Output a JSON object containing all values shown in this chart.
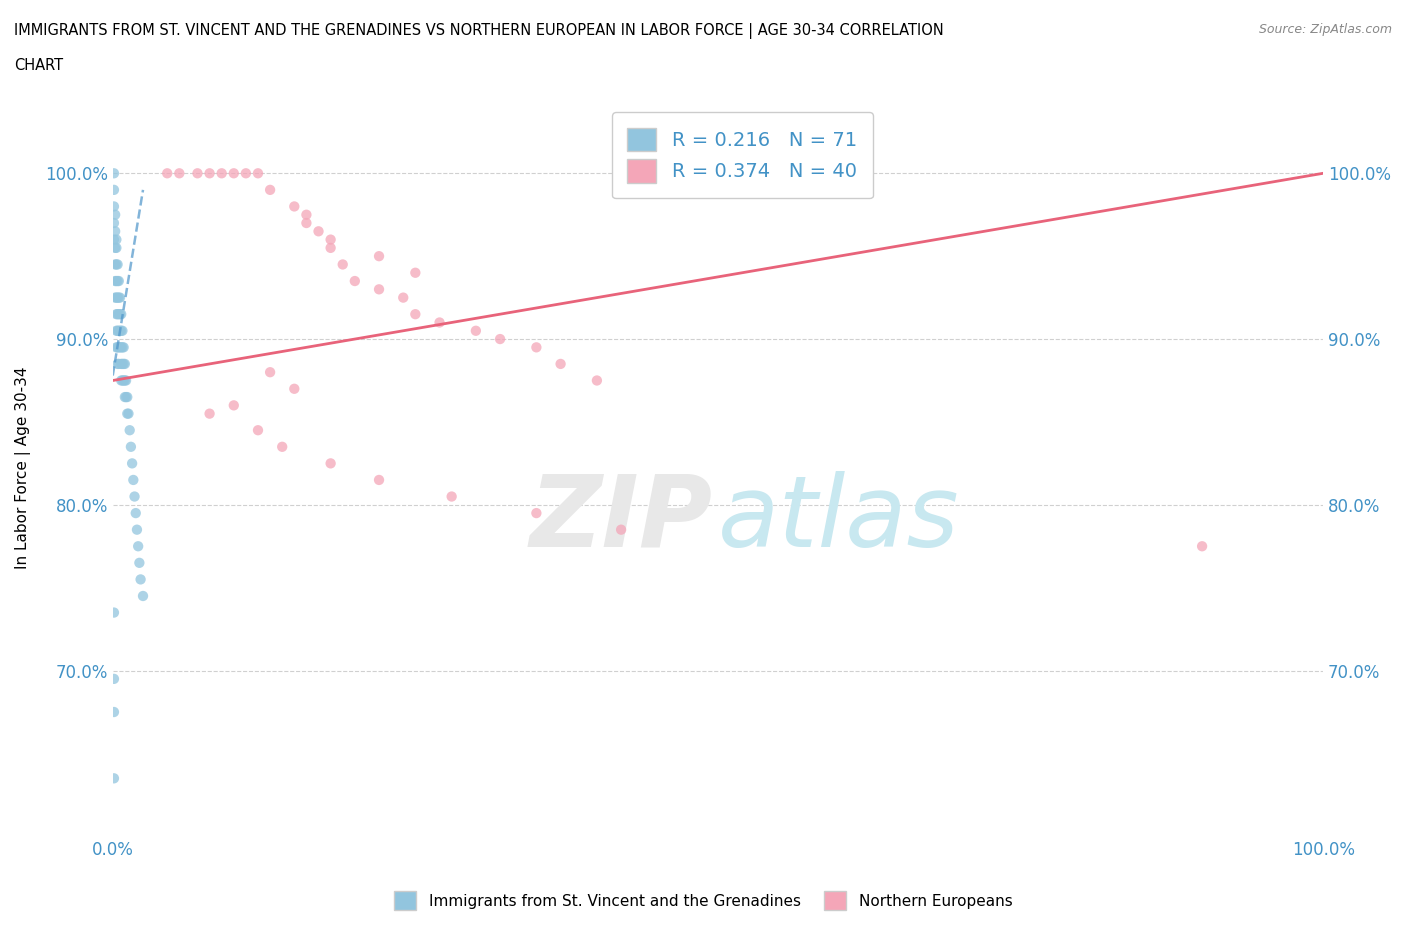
{
  "title_line1": "IMMIGRANTS FROM ST. VINCENT AND THE GRENADINES VS NORTHERN EUROPEAN IN LABOR FORCE | AGE 30-34 CORRELATION",
  "title_line2": "CHART",
  "source": "Source: ZipAtlas.com",
  "ylabel": "In Labor Force | Age 30-34",
  "xmin": 0.0,
  "xmax": 1.0,
  "ymin": 0.6,
  "ymax": 1.045,
  "yticks": [
    0.7,
    0.8,
    0.9,
    1.0
  ],
  "ytick_labels": [
    "70.0%",
    "80.0%",
    "90.0%",
    "100.0%"
  ],
  "blue_color": "#92c5de",
  "pink_color": "#f4a6b8",
  "blue_line_color": "#4d94c9",
  "pink_line_color": "#e8637a",
  "R_blue": 0.216,
  "N_blue": 71,
  "R_pink": 0.374,
  "N_pink": 40,
  "blue_scatter_x": [
    0.001,
    0.001,
    0.001,
    0.001,
    0.001,
    0.002,
    0.002,
    0.002,
    0.002,
    0.002,
    0.002,
    0.003,
    0.003,
    0.003,
    0.003,
    0.003,
    0.003,
    0.003,
    0.003,
    0.004,
    0.004,
    0.004,
    0.004,
    0.004,
    0.004,
    0.004,
    0.005,
    0.005,
    0.005,
    0.005,
    0.005,
    0.005,
    0.006,
    0.006,
    0.006,
    0.006,
    0.007,
    0.007,
    0.007,
    0.007,
    0.007,
    0.008,
    0.008,
    0.008,
    0.008,
    0.009,
    0.009,
    0.009,
    0.01,
    0.01,
    0.01,
    0.011,
    0.011,
    0.012,
    0.012,
    0.013,
    0.014,
    0.015,
    0.016,
    0.017,
    0.018,
    0.019,
    0.02,
    0.021,
    0.022,
    0.023,
    0.025,
    0.001,
    0.001,
    0.001,
    0.001
  ],
  "blue_scatter_y": [
    1.0,
    0.99,
    0.98,
    0.97,
    0.96,
    0.975,
    0.965,
    0.955,
    0.945,
    0.935,
    0.925,
    0.96,
    0.955,
    0.945,
    0.935,
    0.925,
    0.915,
    0.905,
    0.895,
    0.945,
    0.935,
    0.925,
    0.915,
    0.905,
    0.895,
    0.885,
    0.935,
    0.925,
    0.915,
    0.905,
    0.895,
    0.885,
    0.925,
    0.915,
    0.905,
    0.895,
    0.915,
    0.905,
    0.895,
    0.885,
    0.875,
    0.905,
    0.895,
    0.885,
    0.875,
    0.895,
    0.885,
    0.875,
    0.885,
    0.875,
    0.865,
    0.875,
    0.865,
    0.865,
    0.855,
    0.855,
    0.845,
    0.835,
    0.825,
    0.815,
    0.805,
    0.795,
    0.785,
    0.775,
    0.765,
    0.755,
    0.745,
    0.735,
    0.695,
    0.675,
    0.635
  ],
  "pink_scatter_x": [
    0.045,
    0.055,
    0.07,
    0.08,
    0.09,
    0.1,
    0.11,
    0.12,
    0.13,
    0.15,
    0.16,
    0.17,
    0.18,
    0.19,
    0.2,
    0.22,
    0.24,
    0.25,
    0.27,
    0.3,
    0.32,
    0.35,
    0.37,
    0.4,
    0.16,
    0.18,
    0.22,
    0.25,
    0.13,
    0.15,
    0.1,
    0.08,
    0.12,
    0.14,
    0.18,
    0.22,
    0.28,
    0.35,
    0.42,
    0.9
  ],
  "pink_scatter_y": [
    1.0,
    1.0,
    1.0,
    1.0,
    1.0,
    1.0,
    1.0,
    1.0,
    0.99,
    0.98,
    0.975,
    0.965,
    0.955,
    0.945,
    0.935,
    0.93,
    0.925,
    0.915,
    0.91,
    0.905,
    0.9,
    0.895,
    0.885,
    0.875,
    0.97,
    0.96,
    0.95,
    0.94,
    0.88,
    0.87,
    0.86,
    0.855,
    0.845,
    0.835,
    0.825,
    0.815,
    0.805,
    0.795,
    0.785,
    0.775
  ],
  "blue_line_x": [
    0.0,
    0.025
  ],
  "blue_line_y": [
    0.878,
    0.99
  ],
  "pink_line_x": [
    0.0,
    1.0
  ],
  "pink_line_y": [
    0.875,
    1.0
  ]
}
